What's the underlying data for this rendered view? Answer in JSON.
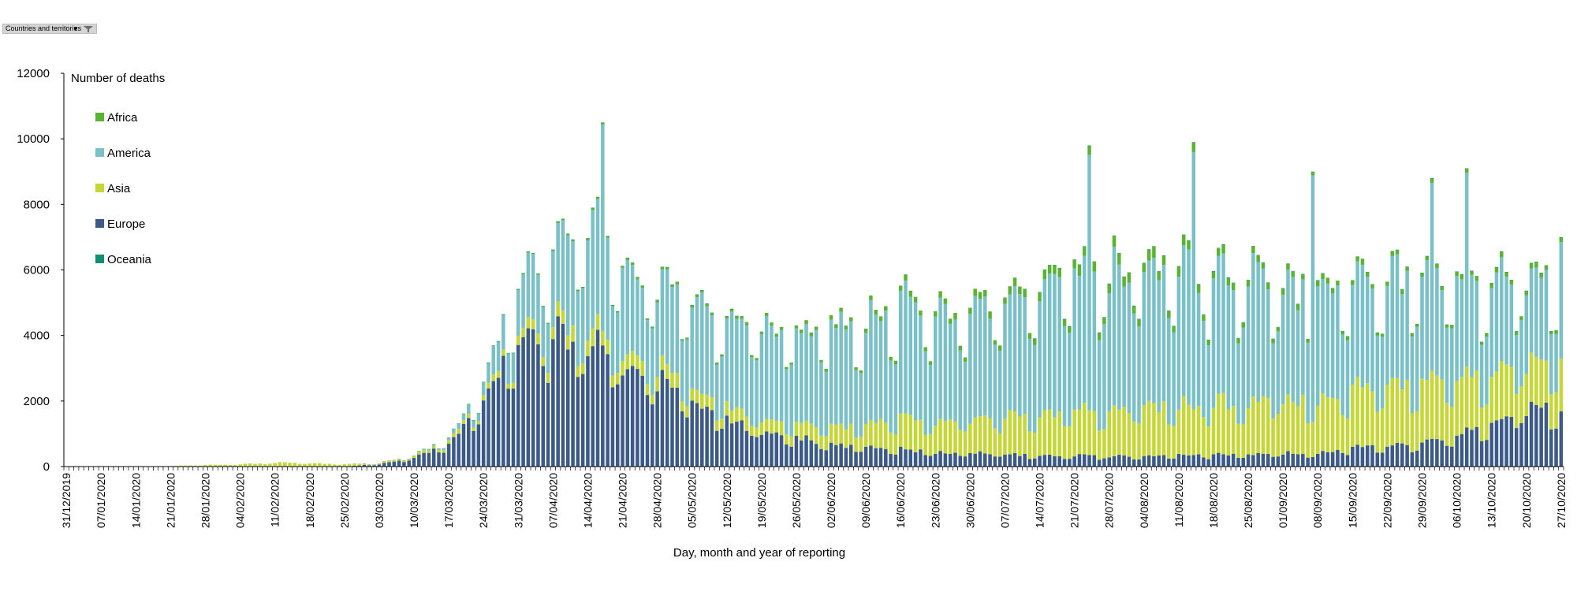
{
  "filter": {
    "label": "Countries and territories"
  },
  "colors": {
    "Africa": "#5bb233",
    "America": "#7ac0c8",
    "Asia": "#c5d637",
    "Europe": "#3c5a87",
    "Oceania": "#0e8f72"
  },
  "chart_data": {
    "type": "bar",
    "stacked": true,
    "title": "",
    "ylabel": "Number of deaths",
    "xlabel": "Day, month and year of reporting",
    "ylim": [
      0,
      12000
    ],
    "yticks": [
      0,
      2000,
      4000,
      6000,
      8000,
      10000,
      12000
    ],
    "date_start": "31/12/2019",
    "date_end": "27/10/2020",
    "xtick_labels": [
      "31/12/2019",
      "07/01/2020",
      "14/01/2020",
      "21/01/2020",
      "28/01/2020",
      "04/02/2020",
      "11/02/2020",
      "18/02/2020",
      "25/02/2020",
      "03/03/2020",
      "10/03/2020",
      "17/03/2020",
      "24/03/2020",
      "31/03/2020",
      "07/04/2020",
      "14/04/2020",
      "21/04/2020",
      "28/04/2020",
      "05/05/2020",
      "12/05/2020",
      "19/05/2020",
      "26/05/2020",
      "02/06/2020",
      "09/06/2020",
      "16/06/2020",
      "23/06/2020",
      "30/06/2020",
      "07/07/2020",
      "14/07/2020",
      "21/07/2020",
      "28/07/2020",
      "04/08/2020",
      "11/08/2020",
      "18/08/2020",
      "25/08/2020",
      "01/09/2020",
      "08/09/2020",
      "15/09/2020",
      "22/09/2020",
      "29/09/2020",
      "06/10/2020",
      "13/10/2020",
      "20/10/2020",
      "27/10/2020"
    ],
    "legend": [
      "Africa",
      "America",
      "Asia",
      "Europe",
      "Oceania"
    ],
    "series_order": [
      "Europe",
      "Asia",
      "America",
      "Africa",
      "Oceania"
    ],
    "weekly_totals": [
      {
        "week_start": "31/12/2019",
        "Europe": 0,
        "Asia": 0,
        "America": 0,
        "Africa": 0,
        "Oceania": 0
      },
      {
        "week_start": "07/01/2020",
        "Europe": 0,
        "Asia": 1,
        "America": 0,
        "Africa": 0,
        "Oceania": 0
      },
      {
        "week_start": "14/01/2020",
        "Europe": 0,
        "Asia": 3,
        "America": 0,
        "Africa": 0,
        "Oceania": 0
      },
      {
        "week_start": "21/01/2020",
        "Europe": 0,
        "Asia": 15,
        "America": 0,
        "Africa": 0,
        "Oceania": 0
      },
      {
        "week_start": "28/01/2020",
        "Europe": 0,
        "Asia": 45,
        "America": 0,
        "Africa": 0,
        "Oceania": 0
      },
      {
        "week_start": "04/02/2020",
        "Europe": 0,
        "Asia": 70,
        "America": 0,
        "Africa": 0,
        "Oceania": 0
      },
      {
        "week_start": "11/02/2020",
        "Europe": 0,
        "Asia": 115,
        "America": 0,
        "Africa": 0,
        "Oceania": 0
      },
      {
        "week_start": "18/02/2020",
        "Europe": 2,
        "Asia": 100,
        "America": 0,
        "Africa": 0,
        "Oceania": 0
      },
      {
        "week_start": "25/02/2020",
        "Europe": 10,
        "Asia": 60,
        "America": 0,
        "Africa": 0,
        "Oceania": 0
      },
      {
        "week_start": "03/03/2020",
        "Europe": 70,
        "Asia": 35,
        "America": 3,
        "Africa": 0,
        "Oceania": 0
      },
      {
        "week_start": "10/03/2020",
        "Europe": 250,
        "Asia": 60,
        "America": 20,
        "Africa": 1,
        "Oceania": 0
      },
      {
        "week_start": "17/03/2020",
        "Europe": 700,
        "Asia": 110,
        "America": 80,
        "Africa": 5,
        "Oceania": 0
      },
      {
        "week_start": "24/03/2020",
        "Europe": 1900,
        "Asia": 150,
        "America": 400,
        "Africa": 15,
        "Oceania": 1
      },
      {
        "week_start": "31/03/2020",
        "Europe": 3900,
        "Asia": 250,
        "America": 1500,
        "Africa": 30,
        "Oceania": 2
      },
      {
        "week_start": "07/04/2020",
        "Europe": 4000,
        "Asia": 400,
        "America": 2400,
        "Africa": 40,
        "Oceania": 3
      },
      {
        "week_start": "14/04/2020",
        "Europe": 3800,
        "Asia": 500,
        "America": 3200,
        "Africa": 60,
        "Oceania": 3
      },
      {
        "week_start": "21/04/2020",
        "Europe": 3000,
        "Asia": 450,
        "America": 2600,
        "Africa": 60,
        "Oceania": 2
      },
      {
        "week_start": "28/04/2020",
        "Europe": 2600,
        "Asia": 400,
        "America": 2500,
        "Africa": 70,
        "Oceania": 1
      },
      {
        "week_start": "05/05/2020",
        "Europe": 1900,
        "Asia": 420,
        "America": 2600,
        "Africa": 80,
        "Oceania": 1
      },
      {
        "week_start": "12/05/2020",
        "Europe": 1400,
        "Asia": 400,
        "America": 2600,
        "Africa": 80,
        "Oceania": 1
      },
      {
        "week_start": "19/05/2020",
        "Europe": 1100,
        "Asia": 380,
        "America": 2700,
        "Africa": 90,
        "Oceania": 0
      },
      {
        "week_start": "26/05/2020",
        "Europe": 850,
        "Asia": 430,
        "America": 2800,
        "Africa": 100,
        "Oceania": 0
      },
      {
        "week_start": "02/06/2020",
        "Europe": 700,
        "Asia": 560,
        "America": 3000,
        "Africa": 120,
        "Oceania": 0
      },
      {
        "week_start": "09/06/2020",
        "Europe": 550,
        "Asia": 700,
        "America": 3000,
        "Africa": 130,
        "Oceania": 0
      },
      {
        "week_start": "16/06/2020",
        "Europe": 550,
        "Asia": 950,
        "America": 3400,
        "Africa": 160,
        "Oceania": 0
      },
      {
        "week_start": "23/06/2020",
        "Europe": 420,
        "Asia": 950,
        "America": 3300,
        "Africa": 170,
        "Oceania": 0
      },
      {
        "week_start": "30/06/2020",
        "Europe": 400,
        "Asia": 1000,
        "America": 3300,
        "Africa": 190,
        "Oceania": 0
      },
      {
        "week_start": "07/07/2020",
        "Europe": 380,
        "Asia": 1100,
        "America": 3500,
        "Africa": 220,
        "Oceania": 0
      },
      {
        "week_start": "14/07/2020",
        "Europe": 330,
        "Asia": 1250,
        "America": 3700,
        "Africa": 260,
        "Oceania": 1
      },
      {
        "week_start": "21/07/2020",
        "Europe": 320,
        "Asia": 1300,
        "America": 4300,
        "Africa": 290,
        "Oceania": 3
      },
      {
        "week_start": "28/07/2020",
        "Europe": 320,
        "Asia": 1400,
        "America": 4000,
        "Africa": 300,
        "Oceania": 5
      },
      {
        "week_start": "04/08/2020",
        "Europe": 320,
        "Asia": 1450,
        "America": 4200,
        "Africa": 300,
        "Oceania": 10
      },
      {
        "week_start": "11/08/2020",
        "Europe": 350,
        "Asia": 1500,
        "America": 4000,
        "Africa": 280,
        "Oceania": 15
      },
      {
        "week_start": "18/08/2020",
        "Europe": 350,
        "Asia": 1550,
        "America": 3800,
        "Africa": 240,
        "Oceania": 15
      },
      {
        "week_start": "25/08/2020",
        "Europe": 360,
        "Asia": 1600,
        "America": 3700,
        "Africa": 200,
        "Oceania": 15
      },
      {
        "week_start": "01/09/2020",
        "Europe": 400,
        "Asia": 1650,
        "America": 3300,
        "Africa": 180,
        "Oceania": 12
      },
      {
        "week_start": "08/09/2020",
        "Europe": 420,
        "Asia": 1650,
        "America": 3300,
        "Africa": 170,
        "Oceania": 8
      },
      {
        "week_start": "15/09/2020",
        "Europe": 550,
        "Asia": 1750,
        "America": 3100,
        "Africa": 150,
        "Oceania": 5
      },
      {
        "week_start": "22/09/2020",
        "Europe": 620,
        "Asia": 1850,
        "America": 3100,
        "Africa": 140,
        "Oceania": 3
      },
      {
        "week_start": "29/09/2020",
        "Europe": 700,
        "Asia": 1800,
        "America": 3200,
        "Africa": 130,
        "Oceania": 2
      },
      {
        "week_start": "06/10/2020",
        "Europe": 880,
        "Asia": 1750,
        "America": 3000,
        "Africa": 130,
        "Oceania": 2
      },
      {
        "week_start": "13/10/2020",
        "Europe": 1250,
        "Asia": 1550,
        "America": 2700,
        "Africa": 140,
        "Oceania": 1
      },
      {
        "week_start": "20/10/2020",
        "Europe": 1750,
        "Asia": 1450,
        "America": 2600,
        "Africa": 150,
        "Oceania": 1
      }
    ],
    "notable_daily_peaks": [
      {
        "date": "17/04/2020",
        "total": 10500
      },
      {
        "date": "24/07/2020",
        "total": 9800
      },
      {
        "date": "14/08/2020",
        "total": 9900
      },
      {
        "date": "07/09/2020",
        "total": 9000
      },
      {
        "date": "01/10/2020",
        "total": 8800
      },
      {
        "date": "08/10/2020",
        "total": 9100
      },
      {
        "date": "27/10/2020",
        "total": 7000
      }
    ]
  }
}
